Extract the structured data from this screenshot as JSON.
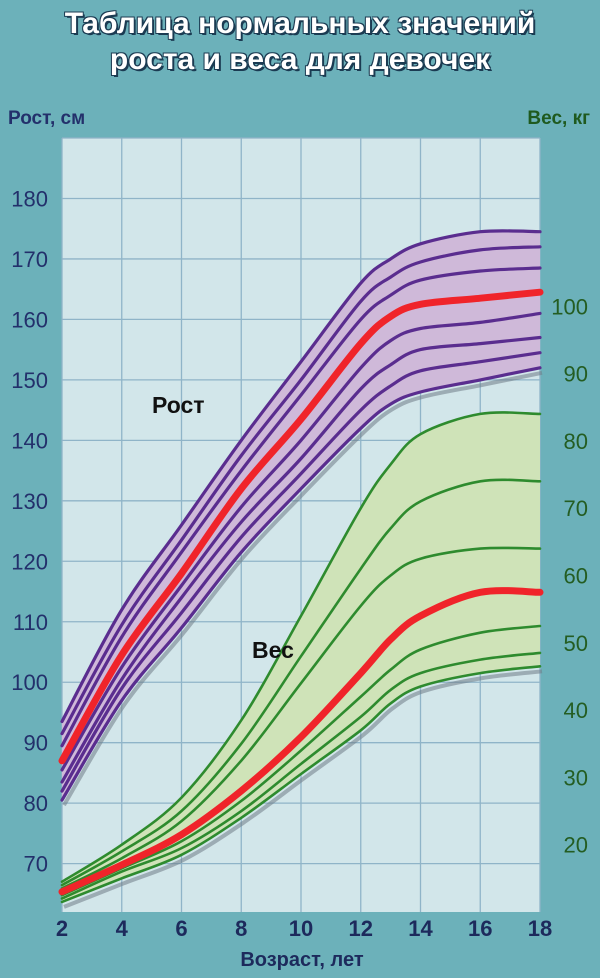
{
  "title_line1": "Таблица нормальных значений",
  "title_line2": "роста и веса для девочек",
  "colors": {
    "background": "#6cb1ba",
    "plot": "#d2e6ea",
    "grid": "#8fb4c8",
    "height_fill": "#cfb9d9",
    "height_lines": "#5a2d8f",
    "weight_fill": "#cfe3b8",
    "weight_lines": "#2e8b2e",
    "median": "#f0242a"
  },
  "chart_data": {
    "type": "line",
    "title": "Таблица нормальных значений роста и веса для девочек",
    "xlabel": "Возраст, лет",
    "ylabel_left": "Рост, см",
    "ylabel_right": "Вес, кг",
    "xlim": [
      2,
      18
    ],
    "ylim_left": [
      62,
      190
    ],
    "ylim_right": [
      10,
      125
    ],
    "grid": true,
    "x_ticks": [
      2,
      4,
      6,
      8,
      10,
      12,
      14,
      16,
      18
    ],
    "y_left_ticks": [
      70,
      80,
      90,
      100,
      110,
      120,
      130,
      140,
      150,
      160,
      170,
      180
    ],
    "y_right_ticks": [
      20,
      30,
      40,
      50,
      60,
      70,
      80,
      90,
      100
    ],
    "annotations": [
      "Рост",
      "Вес"
    ],
    "x": [
      2,
      4,
      6,
      8,
      10,
      12,
      13,
      14,
      16,
      18
    ],
    "height_series": [
      {
        "values": [
          93.5,
          112,
          126,
          140,
          153,
          166,
          170,
          172.5,
          174.5,
          174.5
        ]
      },
      {
        "values": [
          91.5,
          109.5,
          123.5,
          137.5,
          150,
          163,
          167,
          169.5,
          171.5,
          172
        ]
      },
      {
        "values": [
          89.5,
          107.5,
          121.5,
          135,
          147.5,
          160,
          164,
          166.5,
          168,
          168.5
        ]
      },
      {
        "values": [
          87,
          104.5,
          118,
          132,
          143.5,
          156,
          160.5,
          162.5,
          163.5,
          164.5
        ]
      },
      {
        "values": [
          85.5,
          102.5,
          116,
          129,
          140,
          152,
          156.5,
          158.5,
          159.5,
          161
        ]
      },
      {
        "values": [
          83.5,
          100.5,
          114,
          126.5,
          137,
          148.5,
          152.5,
          155,
          156,
          157
        ]
      },
      {
        "values": [
          82,
          99,
          111.5,
          124,
          134.5,
          145,
          149,
          151.5,
          153,
          154.5
        ]
      },
      {
        "values": [
          80.5,
          97,
          109,
          121.5,
          132,
          142,
          146,
          148,
          150,
          152
        ]
      }
    ],
    "height_median_index": 3,
    "weight_series": [
      {
        "values": [
          14.5,
          20,
          27,
          38.5,
          54,
          70,
          76.5,
          81,
          84,
          84
        ]
      },
      {
        "values": [
          14,
          19,
          25,
          35,
          48,
          61,
          67,
          71,
          74,
          74
        ]
      },
      {
        "values": [
          13.5,
          18,
          23.5,
          32.5,
          44,
          55.5,
          60,
          62.5,
          64,
          64
        ]
      },
      {
        "values": [
          13,
          17,
          21.5,
          28,
          36,
          45.5,
          50.5,
          54,
          57.5,
          57.5
        ]
      },
      {
        "values": [
          12.5,
          16.5,
          20.5,
          26.5,
          34,
          42,
          46,
          49,
          51.5,
          52.5
        ]
      },
      {
        "values": [
          12,
          16,
          19.5,
          25,
          32,
          39,
          43,
          45.5,
          47.5,
          48.5
        ]
      },
      {
        "values": [
          11.5,
          15,
          18.5,
          24,
          30.5,
          37,
          41,
          43.5,
          45.5,
          46.5
        ]
      }
    ],
    "weight_median_index": 3
  }
}
